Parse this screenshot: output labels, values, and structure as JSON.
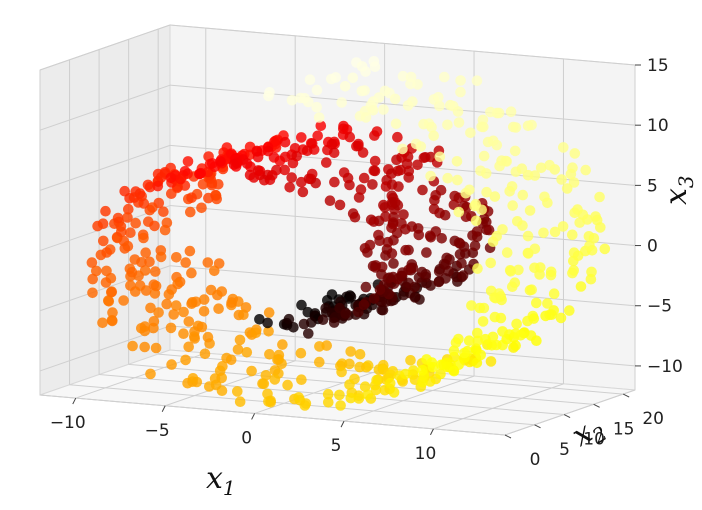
{
  "chart_data": {
    "type": "scatter",
    "projection": "3d",
    "title": "",
    "dataset_shape": "swiss roll",
    "colormap": "hot",
    "colors": {
      "pane_back": "#f4f4f4",
      "pane_side": "#ececec",
      "pane_floor": "#f7f7f7",
      "grid": "#cfcfcf"
    },
    "axes": {
      "x1": {
        "label": "x",
        "subscript": "1",
        "range": [
          -12,
          14
        ],
        "ticks": [
          {
            "value": -10,
            "label": "−10"
          },
          {
            "value": -5,
            "label": "−5"
          },
          {
            "value": 0,
            "label": "0"
          },
          {
            "value": 5,
            "label": "5"
          },
          {
            "value": 10,
            "label": "10"
          }
        ]
      },
      "x2": {
        "label": "x",
        "subscript": "2",
        "range": [
          0,
          22
        ],
        "ticks": [
          {
            "value": 0,
            "label": "0"
          },
          {
            "value": 5,
            "label": "5"
          },
          {
            "value": 10,
            "label": "10"
          },
          {
            "value": 15,
            "label": "15"
          },
          {
            "value": 20,
            "label": "20"
          }
        ]
      },
      "x3": {
        "label": "x",
        "subscript": "3",
        "range": [
          -12,
          15
        ],
        "ticks": [
          {
            "value": -10,
            "label": "−10"
          },
          {
            "value": -5,
            "label": "−5"
          },
          {
            "value": 0,
            "label": "0"
          },
          {
            "value": 5,
            "label": "5"
          },
          {
            "value": 10,
            "label": "10"
          },
          {
            "value": 15,
            "label": "15"
          }
        ]
      }
    },
    "grid": true,
    "n_points": 900,
    "t_range": [
      4.712,
      14.137
    ]
  }
}
